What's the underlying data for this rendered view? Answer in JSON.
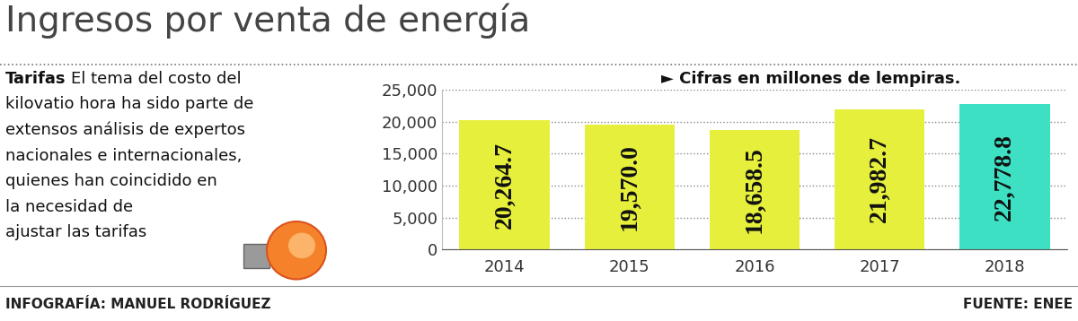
{
  "chart_data": {
    "type": "bar",
    "title": "Ingresos por venta de energía",
    "sidebar_heading": "Tarifas",
    "sidebar_lines": [
      "El tema del costo del",
      "kilovatio hora ha sido parte de",
      "extensos análisis de expertos",
      "nacionales e internacionales,",
      "quienes han coincidido en",
      "la necesidad de",
      "ajustar las tarifas"
    ],
    "note": "► Cifras en millones de lempiras.",
    "credit": "INFOGRAFÍA: MANUEL RODRÍGUEZ",
    "source": "FUENTE: ENEE",
    "categories": [
      "2014",
      "2015",
      "2016",
      "2017",
      "2018"
    ],
    "values": [
      20264.7,
      19570.0,
      18658.5,
      21982.7,
      22778.8
    ],
    "value_labels": [
      "20,264.7",
      "19,570.0",
      "18,658.5",
      "21,982.7",
      "22,778.8"
    ],
    "data_labels": true,
    "colors": [
      "#e6f03c",
      "#e6f03c",
      "#e6f03c",
      "#e6f03c",
      "#3ee0c4"
    ],
    "ylim": [
      0,
      25000
    ],
    "yticks": [
      0,
      {
        "value": 5000,
        "label": "5,000"
      },
      {
        "value": 10000,
        "label": "10,000"
      },
      {
        "value": 15000,
        "label": "15,000"
      },
      {
        "value": 20000,
        "label": "20,000"
      },
      {
        "value": 25000,
        "label": "25,000"
      }
    ],
    "grid": true
  }
}
